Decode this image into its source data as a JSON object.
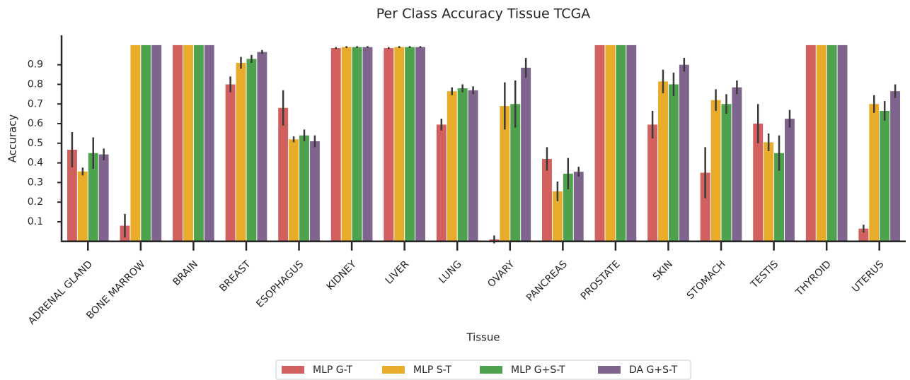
{
  "chart_data": {
    "type": "bar",
    "title": "Per Class Accuracy Tissue TCGA",
    "x_label": "Tissue",
    "y_label": "Accuracy",
    "categories": [
      "ADRENAL GLAND",
      "BONE MARROW",
      "BRAIN",
      "BREAST",
      "ESOPHAGUS",
      "KIDNEY",
      "LIVER",
      "LUNG",
      "OVARY",
      "PANCREAS",
      "PROSTATE",
      "SKIN",
      "STOMACH",
      "TESTIS",
      "THYROID",
      "UTERUS"
    ],
    "series": [
      {
        "name": "MLP G-T",
        "color": "#d1605e",
        "values": [
          0.467,
          0.08,
          1.0,
          0.8,
          0.68,
          0.985,
          0.985,
          0.595,
          0.01,
          0.42,
          1.0,
          0.595,
          0.35,
          0.6,
          1.0,
          0.065
        ],
        "errors": [
          0.09,
          0.06,
          0.0,
          0.04,
          0.09,
          0.005,
          0.005,
          0.03,
          0.02,
          0.06,
          0.0,
          0.07,
          0.13,
          0.1,
          0.0,
          0.02
        ]
      },
      {
        "name": "MLP S-T",
        "color": "#e8ab2a",
        "values": [
          0.356,
          1.0,
          1.0,
          0.91,
          0.52,
          0.99,
          0.99,
          0.765,
          0.69,
          0.255,
          1.0,
          0.815,
          0.72,
          0.505,
          1.0,
          0.7
        ],
        "errors": [
          0.02,
          0.0,
          0.0,
          0.03,
          0.015,
          0.005,
          0.005,
          0.02,
          0.12,
          0.05,
          0.0,
          0.06,
          0.055,
          0.045,
          0.0,
          0.045
        ]
      },
      {
        "name": "MLP G+S-T",
        "color": "#4ea24e",
        "values": [
          0.45,
          1.0,
          1.0,
          0.93,
          0.54,
          0.99,
          0.99,
          0.78,
          0.7,
          0.345,
          1.0,
          0.8,
          0.7,
          0.45,
          1.0,
          0.665
        ],
        "errors": [
          0.08,
          0.0,
          0.0,
          0.02,
          0.03,
          0.005,
          0.005,
          0.02,
          0.12,
          0.08,
          0.0,
          0.06,
          0.05,
          0.09,
          0.0,
          0.05
        ]
      },
      {
        "name": "DA G+S-T",
        "color": "#7f648d",
        "values": [
          0.443,
          1.0,
          1.0,
          0.965,
          0.51,
          0.99,
          0.99,
          0.77,
          0.885,
          0.355,
          1.0,
          0.9,
          0.785,
          0.625,
          1.0,
          0.765
        ],
        "errors": [
          0.03,
          0.0,
          0.0,
          0.01,
          0.03,
          0.005,
          0.005,
          0.02,
          0.05,
          0.025,
          0.0,
          0.035,
          0.035,
          0.045,
          0.0,
          0.035
        ]
      }
    ],
    "ylim": [
      0,
      1.05
    ],
    "yticks": [
      0.1,
      0.2,
      0.3,
      0.4,
      0.5,
      0.6,
      0.7,
      0.8,
      0.9
    ],
    "legend": "bottom"
  }
}
